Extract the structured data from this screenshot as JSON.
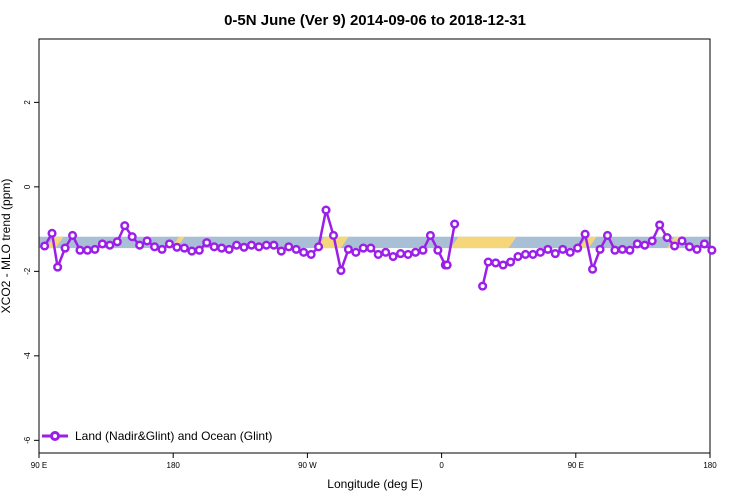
{
  "chart_data": {
    "type": "line",
    "title": "0-5N June (Ver 9)   2014-09-06 to 2018-12-31",
    "xlabel": "Longitude (deg E)",
    "ylabel": "XCO2 - MLO trend (ppm)",
    "xlim": [
      90,
      450
    ],
    "ylim": [
      -6.3,
      3.5
    ],
    "x_ticks": [
      {
        "value": 90,
        "label": "90 E"
      },
      {
        "value": 162,
        "label": "180"
      },
      {
        "value": 234,
        "label": "90 W"
      },
      {
        "value": 306,
        "label": "0"
      },
      {
        "value": 378,
        "label": "90 E"
      },
      {
        "value": 450,
        "label": "180"
      }
    ],
    "y_ticks": [
      {
        "value": 2,
        "label": "2"
      },
      {
        "value": 0,
        "label": "0"
      },
      {
        "value": -2,
        "label": "-2"
      },
      {
        "value": -4,
        "label": "-4"
      },
      {
        "value": -6,
        "label": "-6"
      }
    ],
    "grid": false,
    "legend_position": "bottom-left",
    "colors": {
      "line": "#9b1fe8",
      "ocean_band": "#a9bfd6",
      "land_band": "#f5d77a"
    },
    "band": {
      "y_range": [
        -1.45,
        -1.18
      ],
      "land_segments": [
        [
          96,
          101
        ],
        [
          163,
          166
        ],
        [
          241,
          254
        ],
        [
          313,
          344
        ],
        [
          382,
          387
        ],
        [
          429,
          434
        ]
      ]
    },
    "series": [
      {
        "name": "Land (Nadir&Glint) and Ocean (Glint)",
        "segments": [
          {
            "x": [
              93,
              97,
              100,
              104,
              108,
              112,
              116,
              120,
              124,
              128,
              132,
              136,
              140,
              144,
              148,
              152,
              156,
              160,
              164,
              168,
              172,
              176,
              180,
              184,
              188,
              192,
              196,
              200,
              204,
              208,
              212,
              216,
              220,
              224,
              228,
              232,
              236,
              240,
              244,
              248,
              252,
              256,
              260,
              264,
              268,
              272,
              276,
              280,
              284,
              288,
              292,
              296,
              300,
              304,
              308
            ],
            "y": [
              -1.4,
              -1.1,
              -1.9,
              -1.45,
              -1.15,
              -1.5,
              -1.5,
              -1.48,
              -1.35,
              -1.38,
              -1.3,
              -0.92,
              -1.18,
              -1.38,
              -1.28,
              -1.42,
              -1.48,
              -1.35,
              -1.43,
              -1.45,
              -1.52,
              -1.5,
              -1.32,
              -1.42,
              -1.45,
              -1.48,
              -1.38,
              -1.43,
              -1.38,
              -1.42,
              -1.38,
              -1.38,
              -1.52,
              -1.42,
              -1.48,
              -1.55,
              -1.6,
              -1.42,
              -0.55,
              -1.15,
              -1.98,
              -1.48,
              -1.55,
              -1.45,
              -1.45,
              -1.6,
              -1.55,
              -1.65,
              -1.58,
              -1.6,
              -1.55,
              -1.5,
              -1.15,
              -1.5,
              -1.85
            ]
          },
          {
            "x": [
              309,
              313
            ],
            "y": [
              -1.85,
              -0.88
            ]
          },
          {
            "x": [
              328,
              331,
              335,
              339,
              343,
              347,
              351,
              355,
              359,
              363,
              367,
              371,
              375,
              379,
              383,
              387,
              391,
              395,
              399,
              403,
              407,
              411,
              415,
              419,
              423,
              427,
              431,
              435,
              439,
              443,
              447,
              451
            ],
            "y": [
              -2.35,
              -1.78,
              -1.8,
              -1.85,
              -1.78,
              -1.65,
              -1.6,
              -1.6,
              -1.55,
              -1.48,
              -1.58,
              -1.48,
              -1.55,
              -1.45,
              -1.12,
              -1.95,
              -1.48,
              -1.15,
              -1.5,
              -1.48,
              -1.5,
              -1.35,
              -1.38,
              -1.28,
              -0.9,
              -1.2,
              -1.4,
              -1.28,
              -1.42,
              -1.48,
              -1.35,
              -1.5
            ]
          }
        ]
      }
    ]
  }
}
